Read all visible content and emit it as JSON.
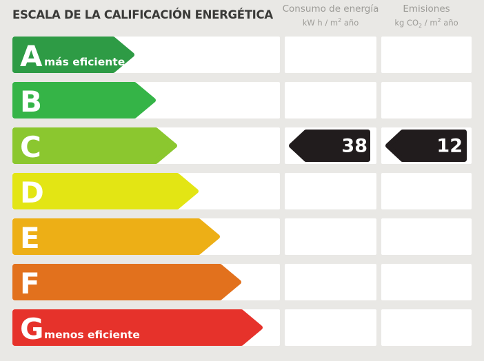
{
  "title": "ESCALA DE LA CALIFICACIÓN ENERGÉTICA",
  "columns": {
    "consumo": {
      "label": "Consumo de energía",
      "unit_a": "kW h / m",
      "unit_sup": "2",
      "unit_b": " año"
    },
    "emisiones": {
      "label": "Emisiones",
      "unit_a": "kg CO",
      "unit_sub": "2",
      "unit_b": " / m",
      "unit_sup": "2",
      "unit_c": " año"
    }
  },
  "ratings": [
    {
      "letter": "A",
      "label": "más eficiente",
      "color": "#2e9b45",
      "arrow_width": 177
    },
    {
      "letter": "B",
      "color": "#35b447",
      "arrow_width": 208
    },
    {
      "letter": "C",
      "color": "#8bc72f",
      "arrow_width": 239,
      "consumo": "38",
      "emisiones": "12"
    },
    {
      "letter": "D",
      "color": "#e3e514",
      "arrow_width": 270
    },
    {
      "letter": "E",
      "color": "#edaf16",
      "arrow_width": 301
    },
    {
      "letter": "F",
      "color": "#e2711d",
      "arrow_width": 332
    },
    {
      "letter": "G",
      "label": "menos eficiente",
      "color": "#e6322b",
      "arrow_width": 363
    }
  ],
  "colors": {
    "background": "#e9e8e5",
    "box": "#ffffff",
    "value_arrow": "#211c1d",
    "title_text": "#3a3a38",
    "header_text": "#9c9b97"
  },
  "chart_data": {
    "type": "bar",
    "title": "ESCALA DE LA CALIFICACIÓN ENERGÉTICA",
    "categories": [
      "A",
      "B",
      "C",
      "D",
      "E",
      "F",
      "G"
    ],
    "category_notes": {
      "A": "más eficiente",
      "G": "menos eficiente"
    },
    "selected_rating": "C",
    "series": [
      {
        "name": "Consumo de energía (kW h / m2 año)",
        "values": [
          null,
          null,
          38,
          null,
          null,
          null,
          null
        ]
      },
      {
        "name": "Emisiones (kg CO2 / m2 año)",
        "values": [
          null,
          null,
          12,
          null,
          null,
          null,
          null
        ]
      }
    ],
    "bar_colors": [
      "#2e9b45",
      "#35b447",
      "#8bc72f",
      "#e3e514",
      "#edaf16",
      "#e2711d",
      "#e6322b"
    ],
    "orientation": "horizontal",
    "legend_position": "top"
  }
}
